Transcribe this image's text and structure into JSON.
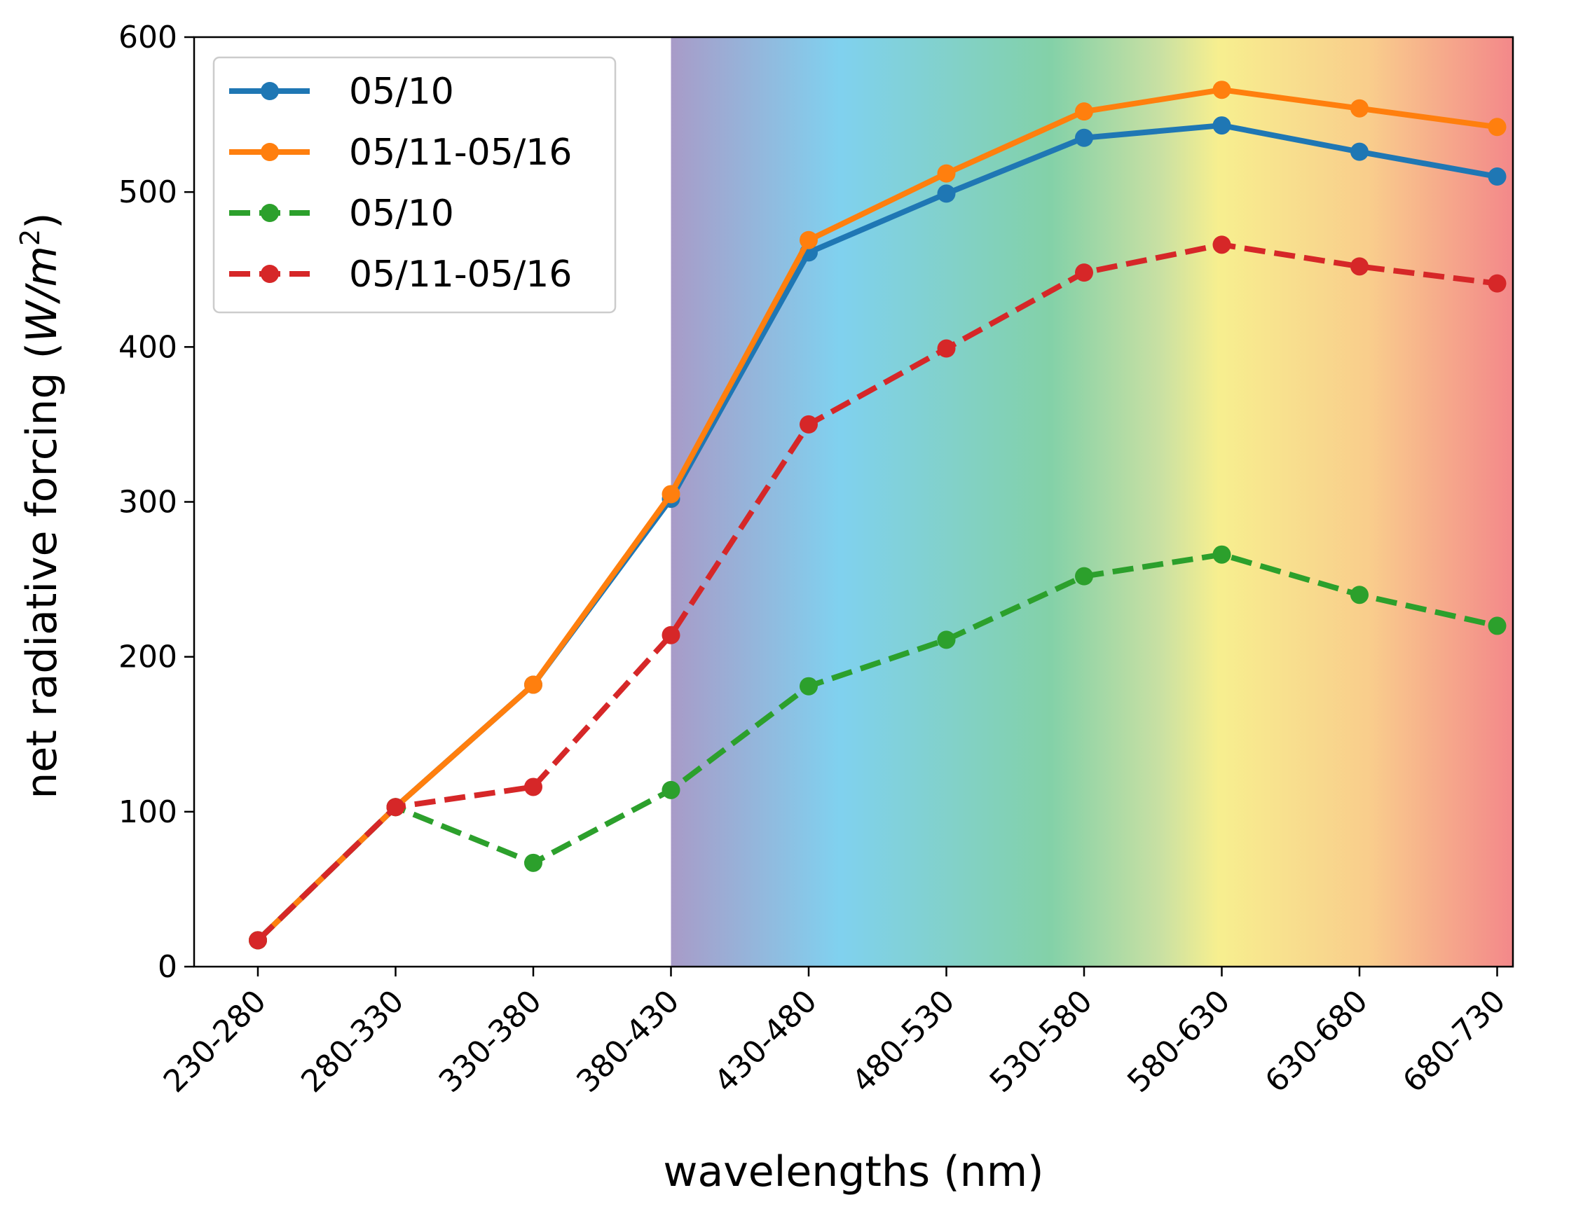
{
  "chart_data": {
    "type": "line",
    "xlabel": "wavelengths (nm)",
    "ylabel_main": "net radiative forcing (",
    "ylabel_unit_w": "W",
    "ylabel_unit_sep": "/",
    "ylabel_unit_m": "m",
    "ylabel_unit_exp": "2",
    "ylabel_close": ")",
    "ylim": [
      0,
      600
    ],
    "yticks": [
      0,
      100,
      200,
      300,
      400,
      500,
      600
    ],
    "categories": [
      "230-280",
      "280-330",
      "330-380",
      "380-430",
      "430-480",
      "480-530",
      "530-580",
      "580-630",
      "630-680",
      "680-730"
    ],
    "visible_spectrum_band": {
      "from_category": "380-430",
      "to_category": "680-730"
    },
    "grid": false,
    "legend_position": "upper-left",
    "series": [
      {
        "name": "05/10",
        "color": "#1f77b4",
        "style": "solid",
        "values": [
          17,
          103,
          182,
          302,
          461,
          499,
          535,
          543,
          526,
          510
        ]
      },
      {
        "name": "05/11-05/16",
        "color": "#ff7f0e",
        "style": "solid",
        "values": [
          17,
          103,
          182,
          305,
          469,
          512,
          552,
          566,
          554,
          542
        ]
      },
      {
        "name": "05/10",
        "color": "#2ca02c",
        "style": "dashed",
        "values": [
          17,
          103,
          67,
          114,
          181,
          211,
          252,
          266,
          240,
          220
        ]
      },
      {
        "name": "05/11-05/16",
        "color": "#d62728",
        "style": "dashed",
        "values": [
          17,
          103,
          116,
          214,
          350,
          399,
          448,
          466,
          452,
          441
        ]
      }
    ]
  }
}
